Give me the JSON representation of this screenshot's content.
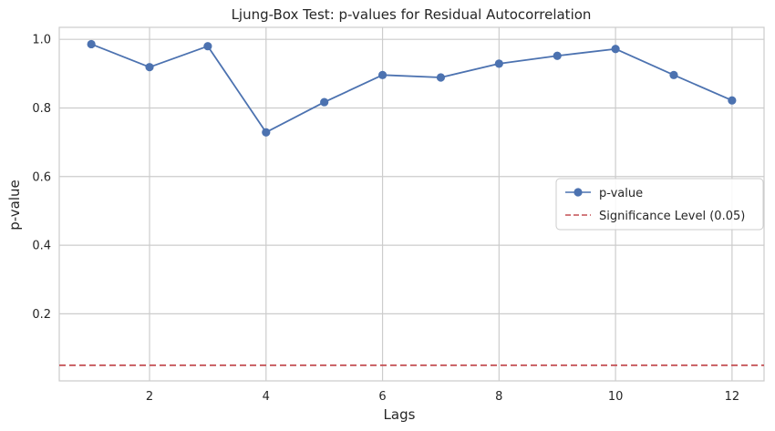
{
  "chart_data": {
    "type": "line",
    "title": "Ljung-Box Test: p-values for Residual Autocorrelation",
    "xlabel": "Lags",
    "ylabel": "p-value",
    "x": [
      1,
      2,
      3,
      4,
      5,
      6,
      7,
      8,
      9,
      10,
      11,
      12
    ],
    "series": [
      {
        "name": "p-value",
        "color": "#4c72b0",
        "marker": "circle",
        "values": [
          0.986,
          0.919,
          0.98,
          0.729,
          0.817,
          0.896,
          0.889,
          0.929,
          0.952,
          0.972,
          0.896,
          0.822
        ]
      }
    ],
    "reference_lines": [
      {
        "name": "Significance Level (0.05)",
        "y": 0.05,
        "color": "#c44e52",
        "style": "dashed"
      }
    ],
    "xlim": [
      0.45,
      12.55
    ],
    "ylim": [
      0.0045,
      1.035
    ],
    "xticks": [
      2,
      4,
      6,
      8,
      10,
      12
    ],
    "xtick_labels": [
      "2",
      "4",
      "6",
      "8",
      "10",
      "12"
    ],
    "yticks": [
      0.2,
      0.4,
      0.6,
      0.8,
      1.0
    ],
    "ytick_labels": [
      "0.2",
      "0.4",
      "0.6",
      "0.8",
      "1.0"
    ],
    "grid": true,
    "legend_position": "center-right"
  }
}
